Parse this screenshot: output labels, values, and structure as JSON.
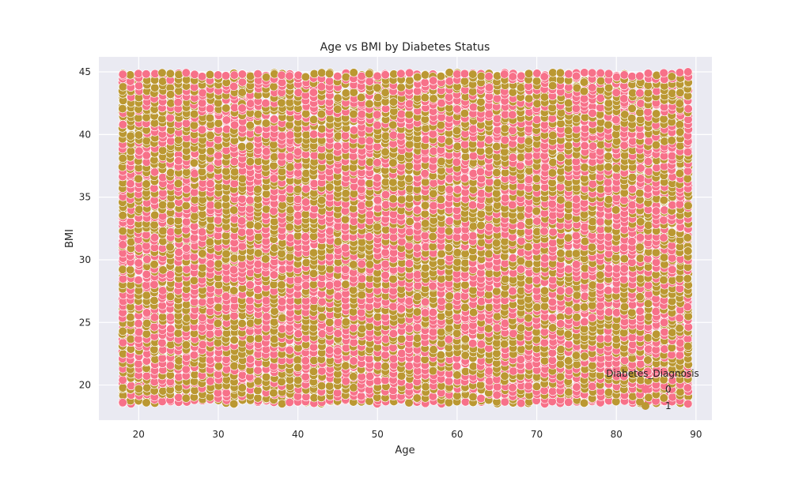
{
  "chart_data": {
    "type": "scatter",
    "title": "Age vs BMI by Diabetes Status",
    "xlabel": "Age",
    "ylabel": "BMI",
    "xlim": [
      15,
      92
    ],
    "ylim": [
      17.2,
      46.2
    ],
    "x_ticks": [
      20,
      30,
      40,
      50,
      60,
      70,
      80,
      90
    ],
    "y_ticks": [
      20,
      25,
      30,
      35,
      40,
      45
    ],
    "grid": true,
    "legend": {
      "title": "Diabetes_Diagnosis",
      "placement": "lower-right",
      "entries": [
        "0",
        "1"
      ]
    },
    "x_range": [
      18,
      89
    ],
    "y_range": [
      18.5,
      45
    ],
    "series": [
      {
        "name": "0",
        "color": "#f77189",
        "values": [
          [
            18,
            18.6
          ],
          [
            18,
            31.2
          ],
          [
            18,
            44.8
          ],
          [
            22,
            25.4
          ],
          [
            25,
            37.9
          ],
          [
            29,
            20.3
          ],
          [
            33,
            42.1
          ],
          [
            37,
            28.8
          ],
          [
            41,
            34.6
          ],
          [
            45,
            22.7
          ],
          [
            49,
            39.5
          ],
          [
            53,
            26.1
          ],
          [
            57,
            44.3
          ],
          [
            61,
            31.8
          ],
          [
            65,
            19.2
          ],
          [
            69,
            36.4
          ],
          [
            73,
            24.9
          ],
          [
            77,
            41.7
          ],
          [
            81,
            29.3
          ],
          [
            85,
            33.9
          ],
          [
            89,
            18.5
          ],
          [
            89,
            45.0
          ]
        ]
      },
      {
        "name": "1",
        "color": "#bb9832",
        "values": [
          [
            18,
            24.3
          ],
          [
            18,
            38.1
          ],
          [
            20,
            19.7
          ],
          [
            24,
            43.2
          ],
          [
            28,
            30.5
          ],
          [
            32,
            23.6
          ],
          [
            36,
            40.9
          ],
          [
            40,
            21.4
          ],
          [
            44,
            35.8
          ],
          [
            48,
            27.2
          ],
          [
            52,
            42.6
          ],
          [
            56,
            32.9
          ],
          [
            60,
            20.8
          ],
          [
            64,
            38.7
          ],
          [
            68,
            29.9
          ],
          [
            72,
            43.9
          ],
          [
            76,
            22.3
          ],
          [
            80,
            37.3
          ],
          [
            84,
            26.5
          ],
          [
            88,
            40.2
          ],
          [
            89,
            30.7
          ],
          [
            89,
            23.1
          ]
        ]
      }
    ]
  }
}
